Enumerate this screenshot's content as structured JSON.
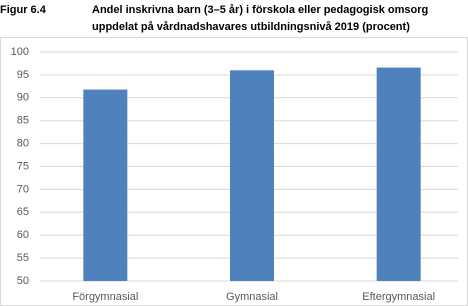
{
  "chart_data": {
    "type": "bar",
    "figure_label": "Figur 6.4",
    "title": [
      "Andel inskrivna barn (3–5 år) i förskola eller pedagogisk omsorg",
      "uppdelat på vårdnadshavares utbildningsnivå 2019 (procent)"
    ],
    "categories": [
      "Förgymnasial",
      "Gymnasial",
      "Eftergymnasial"
    ],
    "values": [
      91.8,
      96,
      96.6
    ],
    "color": "#4f81bd",
    "ylim": [
      50,
      100
    ],
    "yticks": [
      50,
      55,
      60,
      65,
      70,
      75,
      80,
      85,
      90,
      95,
      100
    ],
    "grid": true
  }
}
